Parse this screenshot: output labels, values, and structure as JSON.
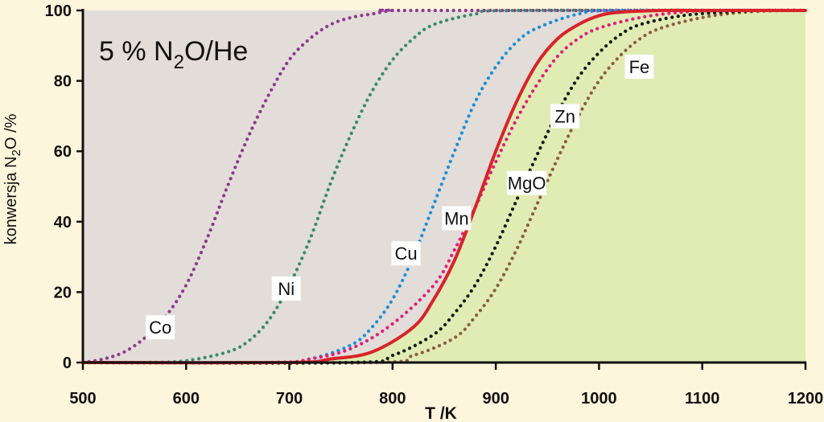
{
  "chart_data": {
    "type": "line",
    "title": "5 % N",
    "title_subscript": "2",
    "title_rest": "O/He",
    "xlabel": "T /K",
    "ylabel": "konwersja N",
    "ylabel_subscript": "2",
    "ylabel_rest": "O /%",
    "xlim": [
      500,
      1200
    ],
    "ylim": [
      0,
      100
    ],
    "xticks": [
      500,
      600,
      700,
      800,
      900,
      1000,
      1100,
      1200
    ],
    "yticks": [
      0,
      20,
      40,
      60,
      80,
      100
    ],
    "grid": false,
    "legend": "inline labels",
    "colors": {
      "background": "#fdf5dc",
      "plot_area": "#e2ddd8",
      "green_fill": "#e1ecb4",
      "axis": "#111111"
    },
    "series": [
      {
        "name": "Co",
        "style": "dotted",
        "color": "#8e3b8e",
        "x": [
          500,
          520,
          540,
          560,
          580,
          600,
          620,
          640,
          660,
          680,
          700,
          720,
          740,
          760,
          780,
          800,
          820
        ],
        "y": [
          0,
          1,
          3,
          7,
          13,
          22,
          35,
          50,
          64,
          76,
          86,
          92,
          96,
          98,
          99,
          100,
          100
        ]
      },
      {
        "name": "Ni",
        "style": "dotted",
        "color": "#3a8a6e",
        "x": [
          560,
          600,
          640,
          660,
          680,
          700,
          720,
          740,
          760,
          780,
          800,
          820,
          840,
          880,
          920
        ],
        "y": [
          0,
          0.5,
          3,
          6,
          12,
          22,
          35,
          51,
          65,
          77,
          86,
          92,
          96,
          99,
          100
        ]
      },
      {
        "name": "Cu",
        "style": "dotted",
        "color": "#1e8fd8",
        "x": [
          680,
          720,
          760,
          780,
          800,
          820,
          840,
          860,
          880,
          900,
          920,
          940,
          980,
          1020
        ],
        "y": [
          0,
          1,
          5,
          10,
          18,
          30,
          45,
          60,
          74,
          84,
          91,
          95,
          99,
          100
        ]
      },
      {
        "name": "Mn",
        "style": "dotted",
        "color": "#e0207e",
        "x": [
          680,
          720,
          760,
          800,
          840,
          860,
          880,
          900,
          920,
          940,
          960,
          980,
          1000,
          1040,
          1080,
          1120
        ],
        "y": [
          0,
          1,
          4,
          11,
          22,
          32,
          44,
          57,
          69,
          79,
          87,
          92,
          95,
          98,
          99.5,
          100
        ]
      },
      {
        "name": "MgO",
        "style": "solid",
        "color": "#d8232a",
        "x": [
          700,
          740,
          780,
          820,
          840,
          860,
          880,
          900,
          920,
          940,
          960,
          980,
          1000,
          1020,
          1060,
          1100
        ],
        "y": [
          0,
          1,
          3,
          10,
          18,
          29,
          44,
          60,
          74,
          85,
          92,
          96,
          98.5,
          99.5,
          100,
          100
        ]
      },
      {
        "name": "Zn",
        "style": "dotted",
        "color": "#1a1a1a",
        "x": [
          760,
          800,
          840,
          860,
          880,
          900,
          920,
          940,
          960,
          980,
          1000,
          1020,
          1040,
          1080,
          1120,
          1160
        ],
        "y": [
          0,
          2,
          8,
          14,
          22,
          33,
          46,
          59,
          71,
          81,
          88,
          93,
          96,
          98.5,
          99.5,
          100
        ]
      },
      {
        "name": "Fe",
        "style": "dotted",
        "color": "#8b5e45",
        "x": [
          780,
          820,
          860,
          880,
          900,
          920,
          940,
          960,
          980,
          1000,
          1020,
          1040,
          1060,
          1100,
          1140,
          1180
        ],
        "y": [
          0,
          2,
          7,
          13,
          21,
          32,
          45,
          58,
          70,
          80,
          87,
          92,
          95,
          98,
          99.5,
          100
        ]
      }
    ],
    "series_label_positions": [
      {
        "name": "Co",
        "x": 575,
        "y": 10
      },
      {
        "name": "Ni",
        "x": 697,
        "y": 21
      },
      {
        "name": "Cu",
        "x": 813,
        "y": 31
      },
      {
        "name": "Mn",
        "x": 862,
        "y": 41
      },
      {
        "name": "MgO",
        "x": 930,
        "y": 51
      },
      {
        "name": "Zn",
        "x": 967,
        "y": 70
      },
      {
        "name": "Fe",
        "x": 1039,
        "y": 84
      }
    ]
  }
}
